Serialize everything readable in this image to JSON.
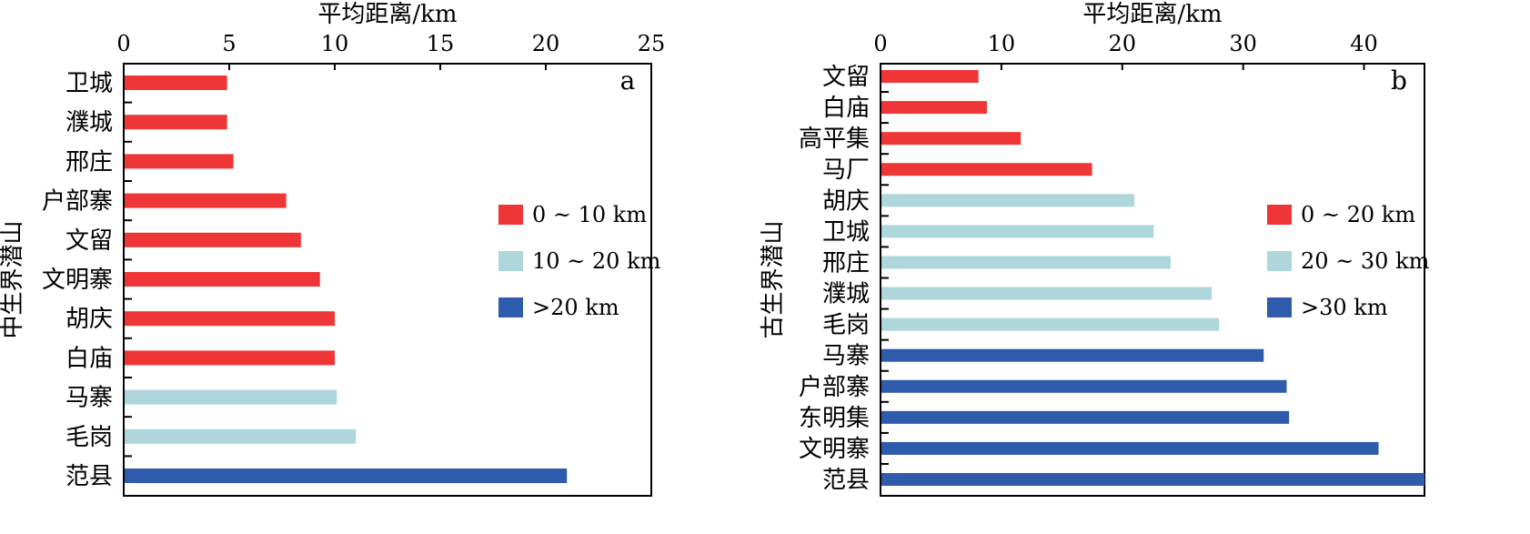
{
  "chart_data": [
    {
      "type": "bar",
      "orientation": "horizontal",
      "panel_label": "a",
      "xlabel": "平均距离/km",
      "ylabel": "中生界潜山",
      "xlim": [
        0,
        25
      ],
      "xticks": [
        "0",
        "5",
        "10",
        "15",
        "20",
        "25"
      ],
      "xaxis_position": "top",
      "categories": [
        "卫城",
        "濮城",
        "邢庄",
        "户部寨",
        "文留",
        "文明寨",
        "胡庆",
        "白庙",
        "马寨",
        "毛岗",
        "范县"
      ],
      "values": [
        4.9,
        4.9,
        5.2,
        7.7,
        8.4,
        9.3,
        10.0,
        10.0,
        10.1,
        11.0,
        21.0
      ],
      "groups": [
        0,
        0,
        0,
        0,
        0,
        0,
        0,
        0,
        1,
        1,
        2
      ],
      "legend": {
        "placement": "right",
        "entries": [
          {
            "label": "0 ~ 10 km",
            "color": "#EE3636"
          },
          {
            "label": "10 ~ 20 km",
            "color": "#AED7DB"
          },
          {
            "label": ">20 km",
            "color": "#2E5BAB"
          }
        ]
      }
    },
    {
      "type": "bar",
      "orientation": "horizontal",
      "panel_label": "b",
      "xlabel": "平均距离/km",
      "ylabel": "古生界潜山",
      "xlim": [
        0,
        45
      ],
      "xticks": [
        "0",
        "10",
        "20",
        "30",
        "40"
      ],
      "xaxis_position": "top",
      "categories": [
        "文留",
        "白庙",
        "高平集",
        "马厂",
        "胡庆",
        "卫城",
        "邢庄",
        "濮城",
        "毛岗",
        "马寨",
        "户部寨",
        "东明集",
        "文明寨",
        "范县"
      ],
      "values": [
        8.1,
        8.8,
        11.6,
        17.5,
        21.0,
        22.6,
        24.0,
        27.4,
        28.0,
        31.7,
        33.6,
        33.8,
        41.2,
        45.0
      ],
      "groups": [
        0,
        0,
        0,
        0,
        1,
        1,
        1,
        1,
        1,
        2,
        2,
        2,
        2,
        2
      ],
      "legend": {
        "placement": "right",
        "entries": [
          {
            "label": "0 ~ 20 km",
            "color": "#EE3636"
          },
          {
            "label": "20 ~ 30 km",
            "color": "#AED7DB"
          },
          {
            "label": ">30 km",
            "color": "#2E5BAB"
          }
        ]
      }
    }
  ]
}
